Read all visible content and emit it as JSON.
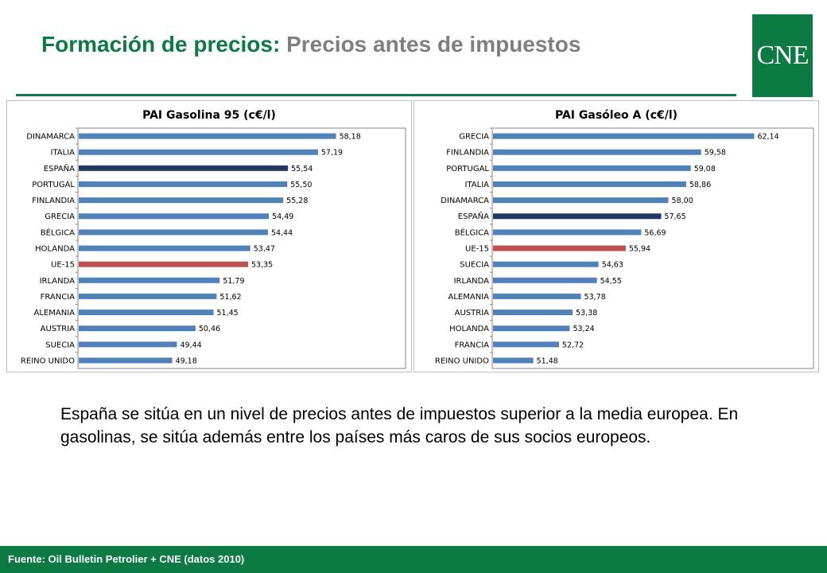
{
  "header": {
    "title_main": "Formación de precios:",
    "title_sub": "Precios antes de impuestos",
    "logo_text": "CNE"
  },
  "colors": {
    "brand_green": "#0b7a43",
    "bar_default": "#4f81bd",
    "bar_spain": "#1f3864",
    "bar_eu": "#c0504d"
  },
  "chart_data": [
    {
      "type": "bar",
      "orientation": "horizontal",
      "title": "PAI Gasolina 95 (c€/l)",
      "categories": [
        "DINAMARCA",
        "ITALIA",
        "ESPAÑA",
        "PORTUGAL",
        "FINLANDIA",
        "GRECIA",
        "BÉLGICA",
        "HOLANDA",
        "UE-15",
        "IRLANDA",
        "FRANCIA",
        "ALEMANIA",
        "AUSTRIA",
        "SUECIA",
        "REINO UNIDO"
      ],
      "values": [
        58.18,
        57.19,
        55.54,
        55.5,
        55.28,
        54.49,
        54.44,
        53.47,
        53.35,
        51.79,
        51.62,
        51.45,
        50.46,
        49.44,
        49.18
      ],
      "value_labels": [
        "58,18",
        "57,19",
        "55,54",
        "55,50",
        "55,28",
        "54,49",
        "54,44",
        "53,47",
        "53,35",
        "51,79",
        "51,62",
        "51,45",
        "50,46",
        "49,44",
        "49,18"
      ],
      "highlight": {
        "ESPAÑA": "#1f3864",
        "UE-15": "#c0504d"
      },
      "xlim": [
        44,
        62
      ]
    },
    {
      "type": "bar",
      "orientation": "horizontal",
      "title": "PAI Gasóleo A (c€/l)",
      "categories": [
        "GRECIA",
        "FINLANDIA",
        "PORTUGAL",
        "ITALIA",
        "DINAMARCA",
        "ESPAÑA",
        "BÉLGICA",
        "UE-15",
        "SUECIA",
        "IRLANDA",
        "ALEMANIA",
        "AUSTRIA",
        "HOLANDA",
        "FRANCIA",
        "REINO UNIDO"
      ],
      "values": [
        62.14,
        59.58,
        59.08,
        58.86,
        58.0,
        57.65,
        56.69,
        55.94,
        54.63,
        54.55,
        53.78,
        53.38,
        53.24,
        52.72,
        51.48
      ],
      "value_labels": [
        "62,14",
        "59,58",
        "59,08",
        "58,86",
        "58,00",
        "57,65",
        "56,69",
        "55,94",
        "54,63",
        "54,55",
        "53,78",
        "53,38",
        "53,24",
        "52,72",
        "51,48"
      ],
      "highlight": {
        "ESPAÑA": "#1f3864",
        "UE-15": "#c0504d"
      },
      "xlim": [
        49.5,
        65
      ]
    }
  ],
  "body": {
    "paragraph": "España se sitúa en un nivel de precios antes de impuestos superior a la media europea. En gasolinas, se sitúa además entre los países más caros de sus socios europeos."
  },
  "footer": {
    "source": "Fuente: Oil Bulletin Petrolier + CNE (datos 2010)"
  }
}
